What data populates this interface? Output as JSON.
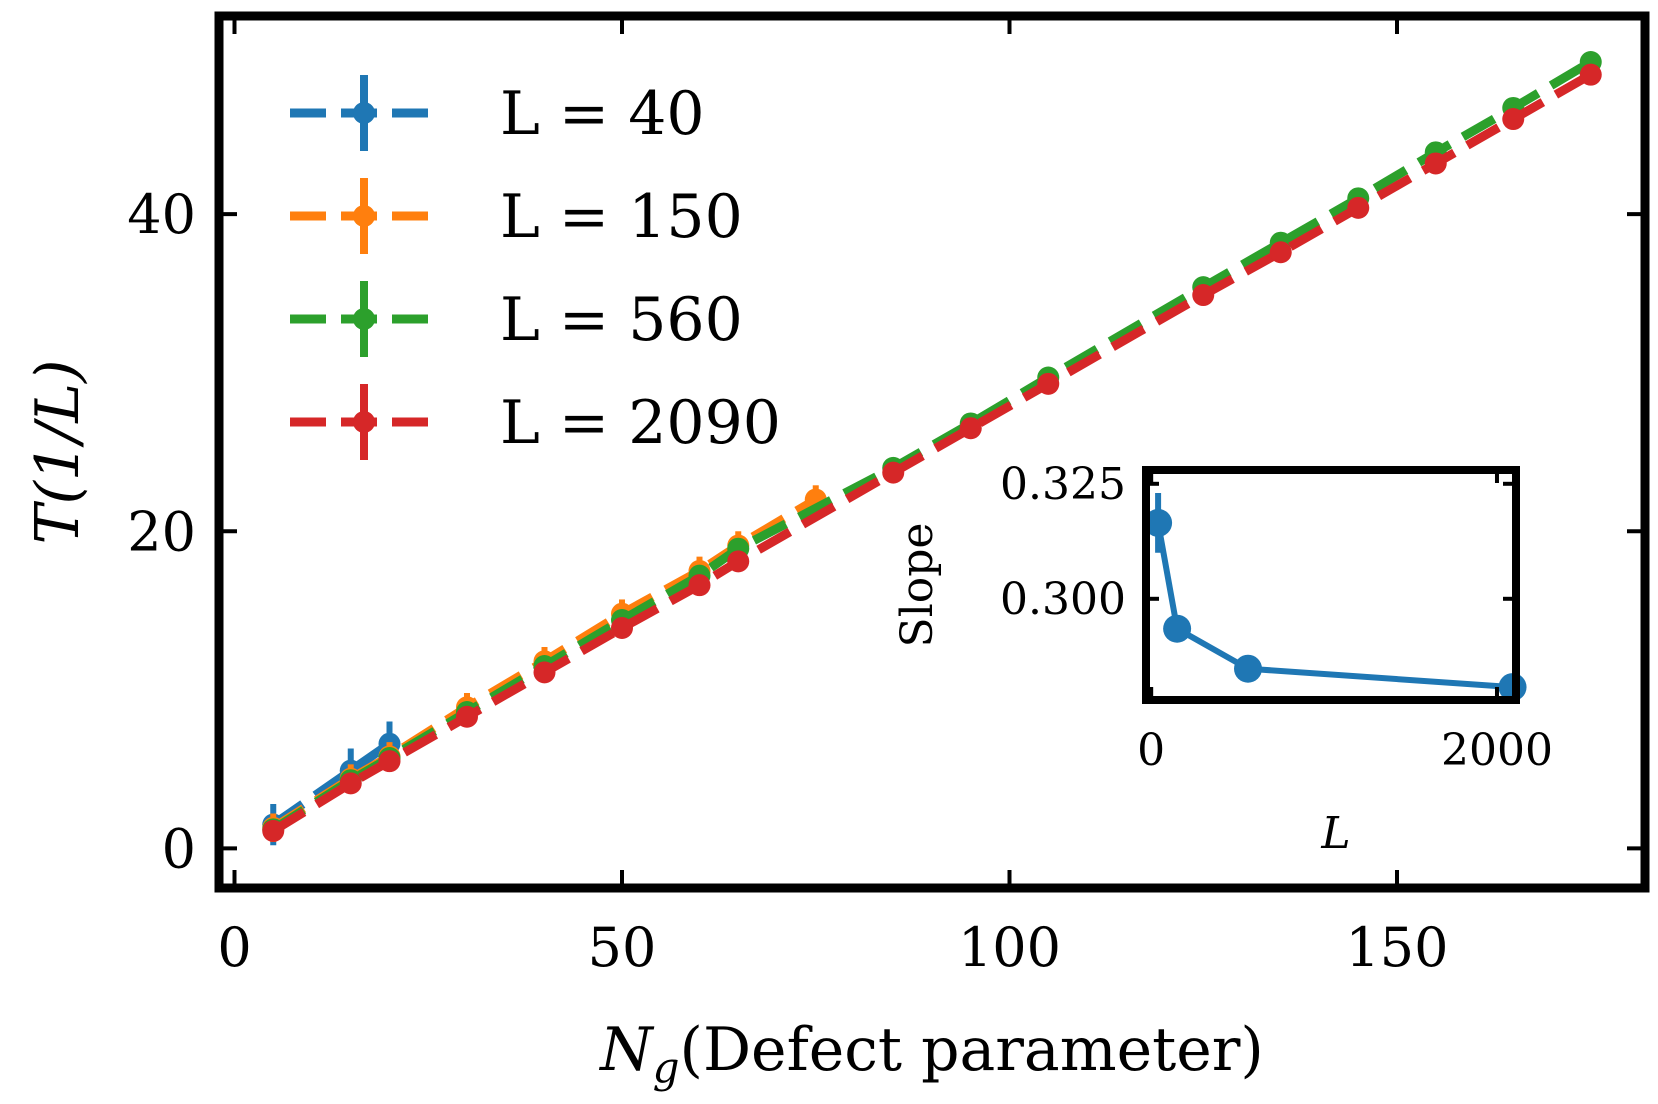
{
  "chart_data": {
    "type": "line",
    "title": "",
    "xlabel_main": "N",
    "xlabel_sub": "g",
    "xlabel_rest": "(Defect parameter)",
    "ylabel": "T(1/L)",
    "xlim": [
      -2,
      182
    ],
    "ylim": [
      -2.5,
      52.5
    ],
    "xticks": [
      0,
      50,
      100,
      150
    ],
    "yticks": [
      0,
      20,
      40
    ],
    "xtick_labels": [
      "0",
      "50",
      "100",
      "150"
    ],
    "ytick_labels": [
      "0",
      "20",
      "40"
    ],
    "legend_position": "top-left",
    "series": [
      {
        "name": "L = 40",
        "color": "#1f77b4",
        "x": [
          5,
          15,
          20
        ],
        "y": [
          1.5,
          4.9,
          6.6
        ],
        "err": [
          1.3,
          1.4,
          1.4
        ]
      },
      {
        "name": "L = 150",
        "color": "#ff7f0e",
        "x": [
          5,
          15,
          20,
          30,
          40,
          50,
          60,
          65,
          75
        ],
        "y": [
          1.3,
          4.4,
          5.8,
          8.9,
          11.8,
          14.8,
          17.5,
          19.1,
          22.0
        ],
        "err": [
          0.9,
          0.9,
          0.9,
          0.9,
          0.9,
          0.9,
          0.9,
          0.9,
          0.9
        ]
      },
      {
        "name": "L = 560",
        "color": "#2ca02c",
        "x": [
          5,
          15,
          20,
          30,
          40,
          50,
          60,
          65,
          85,
          95,
          105,
          125,
          135,
          145,
          155,
          165,
          175
        ],
        "y": [
          1.2,
          4.3,
          5.7,
          8.6,
          11.5,
          14.4,
          17.2,
          18.9,
          24.0,
          26.8,
          29.7,
          35.4,
          38.2,
          41.0,
          43.9,
          46.7,
          49.6
        ],
        "err": [
          0.5,
          0.5,
          0.5,
          0.5,
          0.5,
          0.5,
          0.5,
          0.5,
          0.5,
          0.5,
          0.5,
          0.5,
          0.5,
          0.5,
          0.5,
          0.5,
          0.5
        ]
      },
      {
        "name": "L = 2090",
        "color": "#d62728",
        "x": [
          5,
          15,
          20,
          30,
          40,
          50,
          60,
          65,
          85,
          95,
          105,
          125,
          135,
          145,
          155,
          165,
          175
        ],
        "y": [
          1.1,
          4.1,
          5.5,
          8.3,
          11.1,
          13.9,
          16.6,
          18.1,
          23.7,
          26.5,
          29.3,
          34.9,
          37.6,
          40.4,
          43.2,
          46.0,
          48.8
        ],
        "err": [
          0.4,
          0.4,
          0.4,
          0.4,
          0.4,
          0.4,
          0.4,
          0.4,
          0.4,
          0.4,
          0.4,
          0.4,
          0.4,
          0.4,
          0.4,
          0.4,
          0.4
        ]
      }
    ],
    "inset": {
      "type": "line",
      "xlabel": "L",
      "ylabel": "Slope",
      "color": "#1f77b4",
      "xlim": [
        -30,
        2110
      ],
      "ylim": [
        0.278,
        0.328
      ],
      "xticks": [
        0,
        2000
      ],
      "yticks": [
        0.3,
        0.325
      ],
      "xtick_labels": [
        "0",
        "2000"
      ],
      "ytick_labels": [
        "0.300",
        "0.325"
      ],
      "x": [
        40,
        150,
        560,
        2090
      ],
      "y": [
        0.3165,
        0.2935,
        0.2848,
        0.2808
      ],
      "err": [
        0.0065,
        0.0015,
        0.0008,
        0.0007
      ]
    }
  }
}
